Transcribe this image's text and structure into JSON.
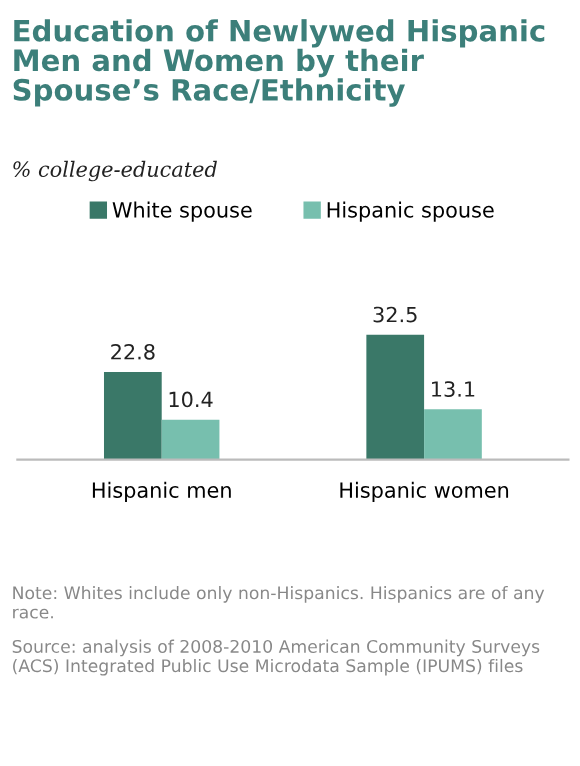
{
  "chart_data": {
    "type": "bar",
    "title": "Education of Newlywed Hispanic Men and Women by their Spouse’s Race/Ethnicity",
    "subtitle": "% college-educated",
    "categories": [
      "Hispanic men",
      "Hispanic women"
    ],
    "series": [
      {
        "name": "White spouse",
        "color": "#3a7868",
        "values": [
          22.8,
          32.5
        ]
      },
      {
        "name": "Hispanic spouse",
        "color": "#77bfae",
        "values": [
          10.4,
          13.1
        ]
      }
    ],
    "data_labels": true,
    "legend": "top",
    "grid": false,
    "annotations": [
      "Note: Whites include only non-Hispanics. Hispanics are of any race.",
      "Source: analysis of 2008-2010 American Community Surveys (ACS) Integrated Public Use Microdata Sample (IPUMS) files"
    ]
  }
}
